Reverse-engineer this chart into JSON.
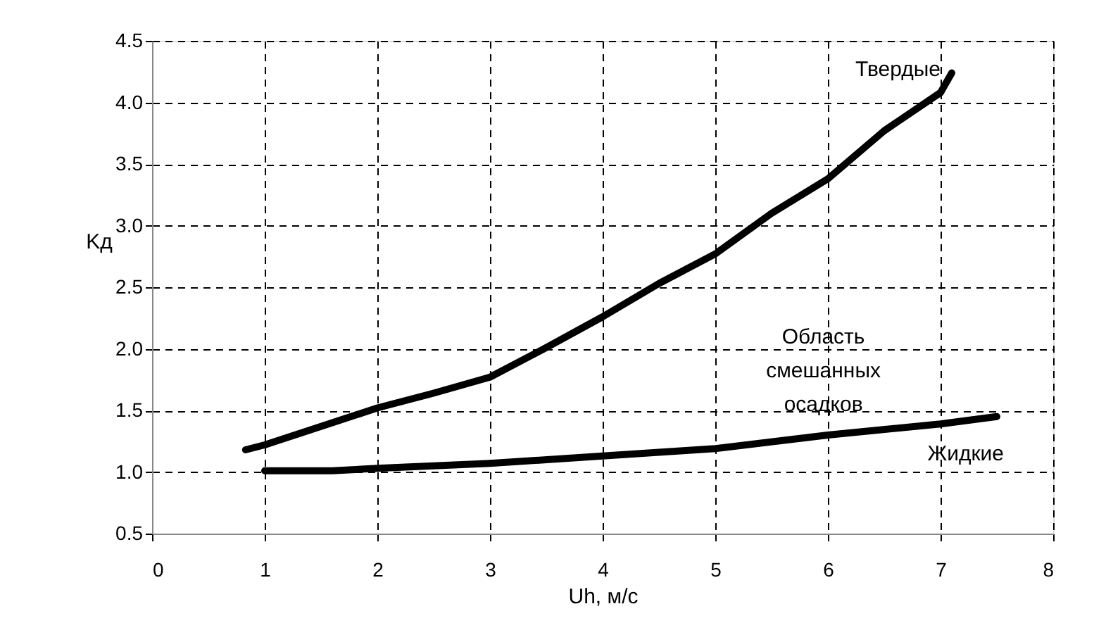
{
  "chart_data": {
    "type": "line",
    "xlabel": "Uh, м/с",
    "ylabel": "Kд",
    "xlim": [
      0,
      8
    ],
    "xticks": [
      0,
      1,
      2,
      3,
      4,
      5,
      6,
      7,
      8
    ],
    "ylim": [
      0.5,
      4.5
    ],
    "yticks": [
      {
        "value": 0.5,
        "label": "0.5"
      },
      {
        "value": 1,
        "label": "1.0"
      },
      {
        "value": 1.5,
        "label": "1.5"
      },
      {
        "value": 2,
        "label": "2.0"
      },
      {
        "value": 2.5,
        "label": "2.5"
      },
      {
        "value": 3,
        "label": "3.0"
      },
      {
        "value": 3.5,
        "label": "3.5"
      },
      {
        "value": 4,
        "label": "4.0"
      },
      {
        "value": 4.5,
        "label": "4.5"
      }
    ],
    "grid": true,
    "line_style": "solid",
    "marker": "none",
    "series": [
      {
        "name": "Твердые",
        "color": "#000000",
        "x": [
          0.83,
          1,
          1.5,
          2,
          2.5,
          3,
          3.5,
          4,
          4.5,
          5,
          5.5,
          6,
          6.5,
          7,
          7.1
        ],
        "values": [
          1.18,
          1.22,
          1.37,
          1.52,
          1.64,
          1.77,
          2.01,
          2.26,
          2.53,
          2.77,
          3.1,
          3.38,
          3.77,
          4.08,
          4.24
        ]
      },
      {
        "name": "Жидкие",
        "color": "#000000",
        "x": [
          1,
          1.6,
          2,
          3,
          4,
          5,
          6,
          7,
          7.5
        ],
        "values": [
          1.01,
          1.01,
          1.03,
          1.07,
          1.13,
          1.19,
          1.3,
          1.39,
          1.45
        ]
      }
    ],
    "annotations": [
      "Область\nсмешанных\nосадков"
    ]
  }
}
